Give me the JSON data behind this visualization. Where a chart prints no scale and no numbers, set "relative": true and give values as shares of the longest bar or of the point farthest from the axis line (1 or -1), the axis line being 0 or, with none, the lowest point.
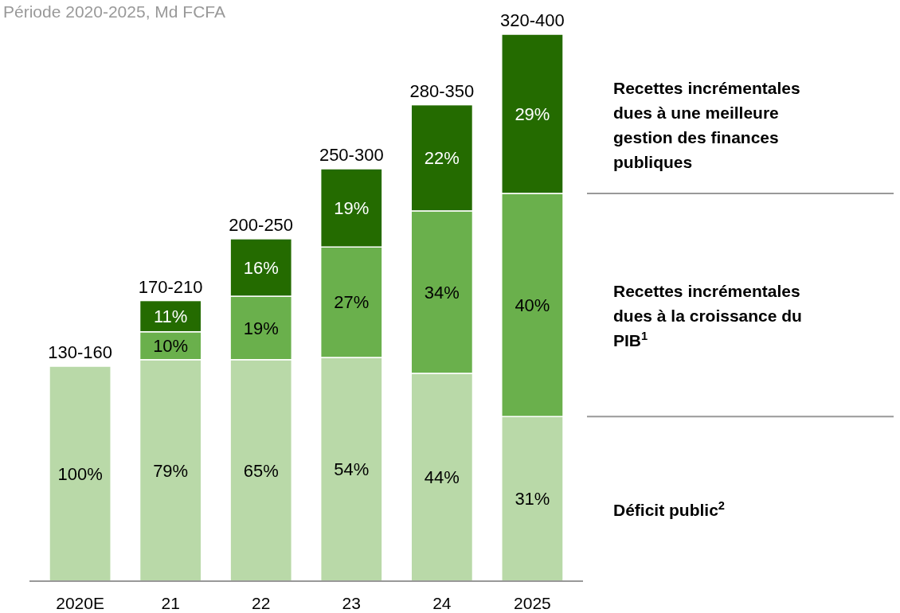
{
  "chart_data": {
    "type": "bar",
    "subtitle": "Période 2020-2025, Md FCFA",
    "relative": true,
    "stacked": true,
    "categories": [
      "2020E",
      "21",
      "22",
      "23",
      "24",
      "2025"
    ],
    "series": [
      {
        "name": "Déficit public$^{2}$",
        "color": "#b9d9a8",
        "values": [
          0.393,
          0.405,
          0.405,
          0.409,
          0.38,
          0.301
        ]
      },
      {
        "name": "Recettes incrémentales dues à la croissance du PIB$^{1}$",
        "color": "#6ab04c",
        "values": [
          null,
          0.051,
          0.116,
          0.202,
          0.297,
          0.408
        ]
      },
      {
        "name": "Recettes incrémentales dues à une meilleure gestion des finances publiques",
        "color": "#246b00",
        "values": [
          null,
          0.057,
          0.105,
          0.143,
          0.194,
          0.291
        ]
      }
    ],
    "totals": [
      "130-160",
      "170-210",
      "200-250",
      "250-300",
      "280-350",
      "320-400"
    ],
    "annotations": [
      "100%",
      "79%",
      "65%",
      "54%",
      "44%",
      "31%",
      "10%",
      "19%",
      "27%",
      "34%",
      "40%",
      "11%",
      "16%",
      "19%",
      "22%",
      "29%"
    ]
  }
}
